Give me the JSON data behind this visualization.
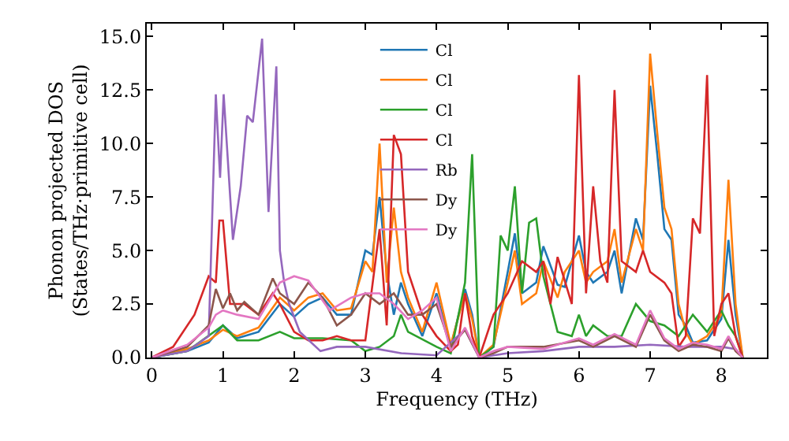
{
  "chart_data": {
    "type": "line",
    "xlabel": "Frequency (THz)",
    "ylabel": "Phonon projected DOS\n(States/THz·primitive cell)",
    "xlim": [
      -0.07,
      8.64
    ],
    "xticks": [
      0,
      1,
      2,
      3,
      4,
      5,
      6,
      7,
      8
    ],
    "ylim": [
      0,
      15.6
    ],
    "yticks": [
      {
        "value": 0,
        "label": "0.0"
      },
      {
        "value": 2.5,
        "label": "2.5"
      },
      {
        "value": 5,
        "label": "5.0"
      },
      {
        "value": 7.5,
        "label": "7.5"
      },
      {
        "value": 10,
        "label": "10.0"
      },
      {
        "value": 12.5,
        "label": "12.5"
      },
      {
        "value": 15,
        "label": "15.0"
      }
    ],
    "legend": "top",
    "marker": "none",
    "line_style": "solid",
    "series": [
      {
        "name": "Cl",
        "color": "#1f77b4",
        "x": [
          0,
          0.5,
          0.8,
          1.0,
          1.2,
          1.5,
          1.8,
          2.0,
          2.2,
          2.4,
          2.6,
          2.8,
          3.0,
          3.1,
          3.2,
          3.3,
          3.4,
          3.5,
          3.6,
          3.8,
          4.0,
          4.2,
          4.4,
          4.5,
          4.6,
          4.8,
          5.0,
          5.1,
          5.2,
          5.4,
          5.5,
          5.7,
          5.8,
          6.0,
          6.1,
          6.2,
          6.4,
          6.5,
          6.6,
          6.8,
          6.9,
          7.0,
          7.1,
          7.2,
          7.3,
          7.4,
          7.5,
          7.6,
          7.8,
          8.0,
          8.1,
          8.2,
          8.3
        ],
        "values": [
          0,
          0.3,
          0.7,
          1.5,
          0.9,
          1.2,
          2.5,
          1.9,
          2.5,
          2.8,
          2.0,
          2.0,
          5.0,
          4.8,
          7.5,
          4.0,
          2.0,
          3.5,
          2.5,
          1.0,
          3.0,
          0.5,
          3.2,
          2.0,
          0,
          0.5,
          4.0,
          5.8,
          3.0,
          3.5,
          5.2,
          3.4,
          3.3,
          5.7,
          4.0,
          3.5,
          4.0,
          5.0,
          3.0,
          6.5,
          5.5,
          12.7,
          9.5,
          6.0,
          5.5,
          2.0,
          1.5,
          0.7,
          0.8,
          1.8,
          5.5,
          2.0,
          0
        ]
      },
      {
        "name": "Cl",
        "color": "#ff7f0e",
        "x": [
          0,
          0.5,
          0.8,
          1.0,
          1.2,
          1.5,
          1.8,
          2.0,
          2.2,
          2.4,
          2.6,
          2.8,
          3.0,
          3.1,
          3.2,
          3.3,
          3.4,
          3.5,
          3.6,
          3.8,
          4.0,
          4.2,
          4.4,
          4.5,
          4.6,
          4.8,
          5.0,
          5.1,
          5.2,
          5.4,
          5.5,
          5.7,
          5.8,
          6.0,
          6.1,
          6.2,
          6.4,
          6.5,
          6.6,
          6.8,
          6.9,
          7.0,
          7.1,
          7.2,
          7.3,
          7.4,
          7.5,
          7.6,
          7.8,
          8.0,
          8.1,
          8.2,
          8.3
        ],
        "values": [
          0,
          0.4,
          0.8,
          1.3,
          1.0,
          1.4,
          2.8,
          2.2,
          2.8,
          3.0,
          2.2,
          2.3,
          4.5,
          4.0,
          10.0,
          3.5,
          7.0,
          4.0,
          2.8,
          1.2,
          3.5,
          0.6,
          3.0,
          1.8,
          0,
          0.6,
          3.5,
          5.0,
          2.5,
          3.0,
          4.5,
          2.8,
          4.0,
          5.0,
          3.5,
          4.0,
          4.5,
          6.0,
          3.5,
          6.0,
          5.0,
          14.2,
          10.5,
          7.0,
          6.0,
          2.5,
          1.2,
          0.6,
          1.0,
          2.0,
          8.3,
          2.5,
          0
        ]
      },
      {
        "name": "Cl",
        "color": "#2ca02c",
        "x": [
          0,
          0.5,
          1.0,
          1.2,
          1.5,
          1.8,
          2.0,
          2.4,
          2.8,
          3.0,
          3.2,
          3.4,
          3.5,
          3.6,
          4.0,
          4.2,
          4.4,
          4.5,
          4.6,
          4.8,
          4.9,
          5.0,
          5.1,
          5.2,
          5.3,
          5.4,
          5.5,
          5.7,
          5.9,
          6.0,
          6.1,
          6.2,
          6.4,
          6.6,
          6.8,
          7.0,
          7.2,
          7.4,
          7.6,
          7.8,
          8.0,
          8.1,
          8.2,
          8.3
        ],
        "values": [
          0,
          0.3,
          1.5,
          0.8,
          0.8,
          1.2,
          0.9,
          0.9,
          0.8,
          0.3,
          0.5,
          1.0,
          2.0,
          1.2,
          0.5,
          0.2,
          3.5,
          9.5,
          0,
          0.5,
          5.7,
          5.0,
          8.0,
          3.0,
          6.3,
          6.5,
          3.8,
          1.2,
          1.0,
          2.0,
          1.0,
          1.5,
          1.0,
          1.0,
          2.5,
          1.7,
          1.5,
          1.0,
          2.0,
          1.2,
          2.2,
          1.5,
          1.0,
          0
        ]
      },
      {
        "name": "Cl",
        "color": "#d62728",
        "x": [
          0,
          0.3,
          0.6,
          0.8,
          0.9,
          0.95,
          1.0,
          1.1,
          1.3,
          1.5,
          1.7,
          1.8,
          2.0,
          2.2,
          2.4,
          2.6,
          2.8,
          3.0,
          3.2,
          3.3,
          3.4,
          3.5,
          3.6,
          3.8,
          4.0,
          4.2,
          4.3,
          4.4,
          4.5,
          4.6,
          4.8,
          5.0,
          5.2,
          5.4,
          5.5,
          5.6,
          5.7,
          5.9,
          6.0,
          6.1,
          6.2,
          6.3,
          6.4,
          6.5,
          6.6,
          6.8,
          6.9,
          7.0,
          7.2,
          7.3,
          7.4,
          7.5,
          7.6,
          7.7,
          7.8,
          7.9,
          8.0,
          8.1,
          8.2,
          8.3
        ],
        "values": [
          0,
          0.5,
          2.0,
          3.8,
          3.5,
          6.4,
          6.4,
          2.5,
          2.5,
          2.0,
          3.0,
          2.5,
          1.2,
          0.8,
          0.8,
          1.0,
          0.8,
          0.8,
          6.0,
          1.5,
          10.4,
          9.5,
          4.0,
          2.0,
          1.0,
          0.3,
          0.6,
          3.0,
          1.0,
          0,
          2.0,
          3.0,
          4.5,
          4.0,
          4.5,
          2.5,
          4.7,
          2.5,
          13.2,
          3.0,
          8.0,
          4.5,
          3.5,
          12.5,
          4.5,
          4.0,
          5.0,
          4.0,
          3.5,
          3.0,
          0.5,
          1.0,
          6.5,
          5.8,
          13.2,
          1.0,
          2.5,
          3.0,
          1.0,
          0
        ]
      },
      {
        "name": "Rb",
        "color": "#9467bd",
        "x": [
          0,
          0.5,
          0.8,
          0.9,
          0.96,
          1.01,
          1.14,
          1.25,
          1.34,
          1.42,
          1.55,
          1.64,
          1.75,
          1.8,
          1.86,
          1.93,
          2.08,
          2.37,
          2.6,
          3.0,
          3.5,
          4.0,
          4.4,
          4.6,
          5.0,
          5.5,
          6.0,
          6.5,
          7.0,
          7.5,
          8.0,
          8.2,
          8.3
        ],
        "values": [
          0,
          0.3,
          1.0,
          12.3,
          8.4,
          12.3,
          5.5,
          8.0,
          11.3,
          11.0,
          14.9,
          6.8,
          13.6,
          5.0,
          3.5,
          2.5,
          1.2,
          0.3,
          0.5,
          0.5,
          0.2,
          0.1,
          1.3,
          0,
          0.2,
          0.3,
          0.5,
          0.5,
          0.6,
          0.5,
          0.5,
          0.4,
          0
        ]
      },
      {
        "name": "Dy",
        "color": "#8c564b",
        "x": [
          0,
          0.5,
          0.8,
          0.9,
          1.0,
          1.1,
          1.2,
          1.3,
          1.5,
          1.7,
          1.8,
          2.0,
          2.2,
          2.4,
          2.6,
          2.8,
          3.0,
          3.2,
          3.4,
          3.6,
          3.8,
          4.0,
          4.2,
          4.4,
          4.6,
          4.8,
          5.0,
          5.5,
          6.0,
          6.2,
          6.5,
          6.8,
          7.0,
          7.2,
          7.4,
          7.6,
          7.8,
          8.0,
          8.1,
          8.2,
          8.3
        ],
        "values": [
          0,
          0.5,
          1.5,
          3.2,
          2.3,
          3.0,
          2.2,
          2.6,
          2.0,
          3.7,
          3.0,
          2.5,
          3.5,
          2.8,
          1.5,
          2.0,
          3.0,
          2.5,
          3.0,
          2.0,
          2.0,
          2.5,
          0.5,
          1.3,
          0,
          0.2,
          0.5,
          0.5,
          0.8,
          0.5,
          1.0,
          0.5,
          2.0,
          0.8,
          0.3,
          0.6,
          0.5,
          0.3,
          0.9,
          0.3,
          0
        ]
      },
      {
        "name": "Dy",
        "color": "#e377c2",
        "x": [
          0,
          0.5,
          0.8,
          0.9,
          1.0,
          1.2,
          1.5,
          1.8,
          2.0,
          2.2,
          2.5,
          2.8,
          3.0,
          3.2,
          3.4,
          3.6,
          3.8,
          4.0,
          4.2,
          4.4,
          4.6,
          4.8,
          5.0,
          5.5,
          6.0,
          6.2,
          6.5,
          6.8,
          7.0,
          7.2,
          7.4,
          7.6,
          7.8,
          8.0,
          8.1,
          8.2,
          8.3
        ],
        "values": [
          0,
          0.6,
          1.4,
          2.0,
          2.2,
          2.0,
          1.8,
          3.5,
          3.8,
          3.6,
          2.2,
          2.8,
          3.0,
          3.0,
          2.5,
          1.8,
          2.2,
          2.8,
          0.3,
          1.4,
          0,
          0.3,
          0.5,
          0.4,
          0.9,
          0.6,
          1.1,
          0.6,
          2.2,
          0.9,
          0.4,
          0.7,
          0.6,
          0.4,
          1.0,
          0.4,
          0
        ]
      }
    ]
  }
}
